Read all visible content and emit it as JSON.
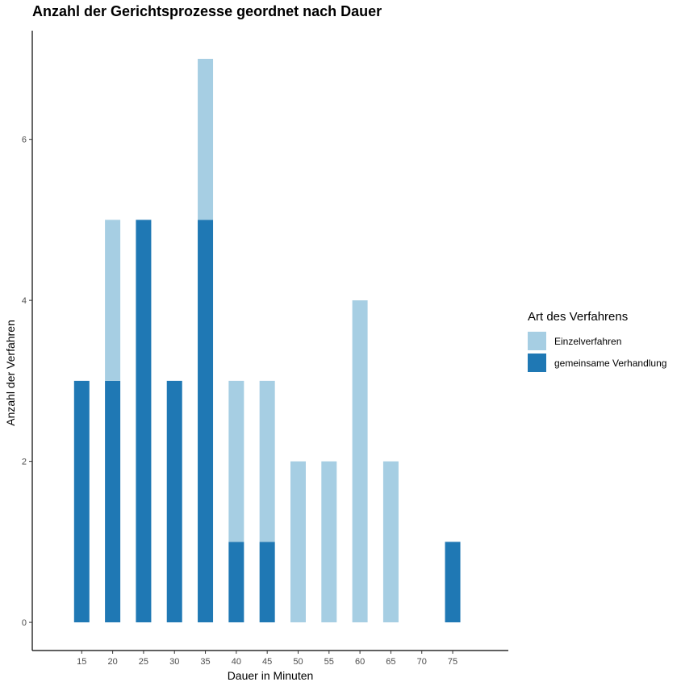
{
  "chart_data": {
    "type": "bar",
    "stacked": true,
    "title": "Anzahl der Gerichtsprozesse geordnet nach Dauer",
    "xlabel": "Dauer in Minuten",
    "ylabel": "Anzahl der Verfahren",
    "x_ticks": [
      15,
      20,
      25,
      30,
      35,
      40,
      45,
      50,
      55,
      60,
      65,
      70,
      75
    ],
    "x": [
      15,
      20,
      25,
      30,
      35,
      40,
      45,
      50,
      55,
      60,
      65,
      70,
      75
    ],
    "y_ticks": [
      0,
      2,
      4,
      6
    ],
    "ylim": [
      -0.35,
      7.35
    ],
    "xlim": [
      7,
      84
    ],
    "grid": false,
    "legend": {
      "title": "Art des Verfahrens",
      "position": "right"
    },
    "series": [
      {
        "name": "gemeinsame Verhandlung",
        "color": "#1f78b4",
        "values": [
          3,
          3,
          5,
          3,
          5,
          1,
          1,
          0,
          0,
          0,
          0,
          0,
          1
        ]
      },
      {
        "name": "Einzelverfahren",
        "color": "#a6cee3",
        "values": [
          0,
          2,
          0,
          0,
          2,
          2,
          2,
          2,
          2,
          4,
          2,
          0,
          0
        ]
      }
    ],
    "legend_order": [
      1,
      0
    ]
  }
}
